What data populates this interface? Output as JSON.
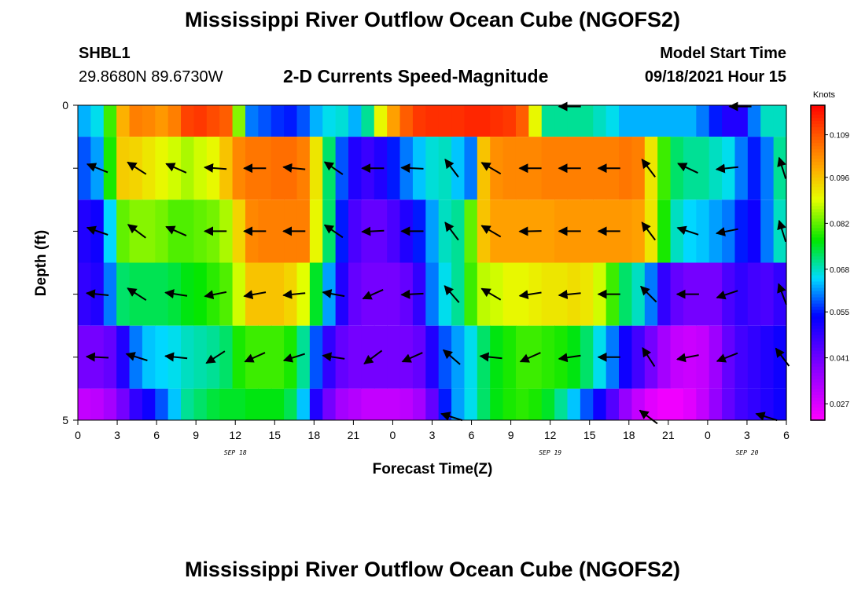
{
  "title": "Mississippi River Outflow Ocean Cube (NGOFS2)",
  "footer_title": "Mississippi River Outflow Ocean Cube (NGOFS2)",
  "station": {
    "id": "SHBL1",
    "coords": "29.8680N  89.6730W"
  },
  "model_start": {
    "label": "Model Start Time",
    "value": "09/18/2021 Hour 15"
  },
  "chart_data": {
    "type": "heatmap",
    "subtitle": "2-D Currents Speed-Magnitude",
    "xlabel": "Forecast Time(Z)",
    "ylabel": "Depth (ft)",
    "y_tick_labels": [
      "0",
      "",
      "",
      "",
      "",
      "5"
    ],
    "x_tick_labels": [
      "0",
      "3",
      "6",
      "9",
      "12",
      "15",
      "18",
      "21",
      "0",
      "3",
      "6",
      "9",
      "12",
      "15",
      "18",
      "21",
      "0",
      "3",
      "6"
    ],
    "date_labels": [
      {
        "text": "SEP 18",
        "hour": 12
      },
      {
        "text": "SEP 19",
        "hour": 36
      },
      {
        "text": "SEP 20",
        "hour": 51
      }
    ],
    "x_range_hours": [
      0,
      54
    ],
    "depth_range": [
      0,
      5
    ],
    "colorbar": {
      "unit": "Knots",
      "min": 0.022,
      "max": 0.118,
      "ticks": [
        "0.109",
        "0.096",
        "0.082",
        "0.068",
        "0.055",
        "0.041",
        "0.027"
      ],
      "tick_values": [
        0.109,
        0.096,
        0.082,
        0.068,
        0.055,
        0.041,
        0.027
      ]
    },
    "layers": [
      {
        "name": "layer1",
        "depth_top": 0.0,
        "depth_bottom": 0.5,
        "speed": [
          0.063,
          0.066,
          0.08,
          0.098,
          0.104,
          0.103,
          0.101,
          0.104,
          0.111,
          0.112,
          0.11,
          0.108,
          0.084,
          0.06,
          0.058,
          0.056,
          0.055,
          0.058,
          0.063,
          0.066,
          0.067,
          0.063,
          0.07,
          0.09,
          0.1,
          0.108,
          0.112,
          0.113,
          0.113,
          0.113,
          0.114,
          0.114,
          0.113,
          0.112,
          0.108,
          0.09,
          0.07,
          0.07,
          0.07,
          0.07,
          0.068,
          0.066,
          0.063,
          0.063,
          0.063,
          0.063,
          0.063,
          0.063,
          0.06,
          0.055,
          0.05,
          0.05,
          0.06,
          0.068,
          0.068
        ]
      },
      {
        "name": "layer2",
        "depth_top": 0.5,
        "depth_bottom": 1.5,
        "speed": [
          0.058,
          0.062,
          0.078,
          0.095,
          0.094,
          0.092,
          0.09,
          0.088,
          0.086,
          0.088,
          0.09,
          0.096,
          0.103,
          0.105,
          0.105,
          0.106,
          0.106,
          0.104,
          0.092,
          0.072,
          0.058,
          0.05,
          0.047,
          0.05,
          0.055,
          0.06,
          0.064,
          0.067,
          0.068,
          0.064,
          0.06,
          0.096,
          0.102,
          0.103,
          0.103,
          0.103,
          0.104,
          0.104,
          0.104,
          0.104,
          0.104,
          0.104,
          0.105,
          0.104,
          0.092,
          0.08,
          0.072,
          0.07,
          0.07,
          0.068,
          0.066,
          0.06,
          0.055,
          0.06,
          0.07
        ]
      },
      {
        "name": "layer3",
        "depth_top": 1.5,
        "depth_bottom": 2.5,
        "speed": [
          0.05,
          0.052,
          0.065,
          0.082,
          0.084,
          0.084,
          0.083,
          0.081,
          0.081,
          0.082,
          0.083,
          0.086,
          0.094,
          0.103,
          0.104,
          0.104,
          0.104,
          0.104,
          0.09,
          0.072,
          0.055,
          0.045,
          0.042,
          0.042,
          0.045,
          0.05,
          0.055,
          0.062,
          0.068,
          0.07,
          0.082,
          0.096,
          0.1,
          0.1,
          0.1,
          0.1,
          0.1,
          0.101,
          0.101,
          0.101,
          0.101,
          0.101,
          0.101,
          0.1,
          0.092,
          0.078,
          0.068,
          0.065,
          0.064,
          0.062,
          0.06,
          0.055,
          0.052,
          0.06,
          0.068
        ]
      },
      {
        "name": "layer4",
        "depth_top": 2.5,
        "depth_bottom": 3.5,
        "speed": [
          0.048,
          0.05,
          0.06,
          0.072,
          0.073,
          0.073,
          0.073,
          0.074,
          0.076,
          0.077,
          0.079,
          0.081,
          0.088,
          0.096,
          0.096,
          0.096,
          0.094,
          0.089,
          0.075,
          0.062,
          0.05,
          0.042,
          0.04,
          0.04,
          0.04,
          0.042,
          0.048,
          0.06,
          0.066,
          0.07,
          0.08,
          0.087,
          0.088,
          0.09,
          0.09,
          0.091,
          0.092,
          0.092,
          0.093,
          0.092,
          0.088,
          0.08,
          0.072,
          0.068,
          0.06,
          0.048,
          0.042,
          0.04,
          0.04,
          0.04,
          0.045,
          0.048,
          0.046,
          0.045,
          0.048
        ]
      },
      {
        "name": "layer5",
        "depth_top": 3.5,
        "depth_bottom": 4.5,
        "speed": [
          0.04,
          0.04,
          0.042,
          0.05,
          0.06,
          0.064,
          0.065,
          0.066,
          0.068,
          0.069,
          0.07,
          0.072,
          0.078,
          0.08,
          0.08,
          0.08,
          0.078,
          0.07,
          0.058,
          0.048,
          0.042,
          0.04,
          0.04,
          0.04,
          0.04,
          0.04,
          0.042,
          0.05,
          0.058,
          0.062,
          0.066,
          0.072,
          0.076,
          0.078,
          0.08,
          0.08,
          0.079,
          0.078,
          0.076,
          0.072,
          0.066,
          0.06,
          0.052,
          0.046,
          0.04,
          0.034,
          0.03,
          0.029,
          0.03,
          0.035,
          0.042,
          0.046,
          0.048,
          0.05,
          0.052
        ]
      },
      {
        "name": "layer6",
        "depth_top": 4.5,
        "depth_bottom": 5.0,
        "speed": [
          0.03,
          0.031,
          0.034,
          0.04,
          0.048,
          0.052,
          0.058,
          0.064,
          0.07,
          0.072,
          0.074,
          0.075,
          0.075,
          0.076,
          0.076,
          0.076,
          0.073,
          0.064,
          0.05,
          0.04,
          0.034,
          0.032,
          0.03,
          0.03,
          0.03,
          0.031,
          0.034,
          0.042,
          0.055,
          0.062,
          0.066,
          0.072,
          0.076,
          0.078,
          0.079,
          0.078,
          0.075,
          0.07,
          0.064,
          0.058,
          0.052,
          0.044,
          0.036,
          0.03,
          0.026,
          0.024,
          0.024,
          0.026,
          0.03,
          0.036,
          0.042,
          0.046,
          0.048,
          0.05,
          0.052
        ]
      }
    ],
    "vectors": [
      {
        "depth": 1.0,
        "items": [
          {
            "h": 1.5,
            "u": -1.0,
            "v": 0.4
          },
          {
            "h": 4.5,
            "u": -0.85,
            "v": 0.55
          },
          {
            "h": 7.5,
            "u": -0.9,
            "v": 0.4
          },
          {
            "h": 10.5,
            "u": -1.0,
            "v": 0.08
          },
          {
            "h": 13.5,
            "u": -1.0,
            "v": 0.0
          },
          {
            "h": 16.5,
            "u": -1.0,
            "v": 0.1
          },
          {
            "h": 19.5,
            "u": -0.8,
            "v": 0.55
          },
          {
            "h": 22.5,
            "u": -1.0,
            "v": 0.0
          },
          {
            "h": 25.5,
            "u": -1.0,
            "v": 0.05
          },
          {
            "h": 28.5,
            "u": -0.6,
            "v": 0.8
          },
          {
            "h": 31.5,
            "u": -0.85,
            "v": 0.5
          },
          {
            "h": 34.5,
            "u": -1.0,
            "v": 0.0
          },
          {
            "h": 37.5,
            "u": -1.0,
            "v": 0.0
          },
          {
            "h": 40.5,
            "u": -1.0,
            "v": 0.0
          },
          {
            "h": 43.5,
            "u": -0.6,
            "v": 0.8
          },
          {
            "h": 46.5,
            "u": -0.85,
            "v": 0.4
          },
          {
            "h": 49.5,
            "u": -1.0,
            "v": -0.1
          },
          {
            "h": 53.7,
            "u": -0.3,
            "v": 0.95
          }
        ]
      },
      {
        "depth": 2.0,
        "items": [
          {
            "h": 1.5,
            "u": -1.0,
            "v": 0.35
          },
          {
            "h": 4.5,
            "u": -0.8,
            "v": 0.6
          },
          {
            "h": 7.5,
            "u": -0.9,
            "v": 0.4
          },
          {
            "h": 10.5,
            "u": -1.0,
            "v": 0.0
          },
          {
            "h": 13.5,
            "u": -1.0,
            "v": 0.0
          },
          {
            "h": 16.5,
            "u": -1.0,
            "v": 0.0
          },
          {
            "h": 19.5,
            "u": -0.8,
            "v": 0.55
          },
          {
            "h": 22.5,
            "u": -1.0,
            "v": -0.05
          },
          {
            "h": 25.5,
            "u": -1.0,
            "v": 0.0
          },
          {
            "h": 28.5,
            "u": -0.6,
            "v": 0.8
          },
          {
            "h": 31.5,
            "u": -0.85,
            "v": 0.5
          },
          {
            "h": 34.5,
            "u": -1.0,
            "v": -0.02
          },
          {
            "h": 37.5,
            "u": -1.0,
            "v": 0.0
          },
          {
            "h": 40.5,
            "u": -1.0,
            "v": 0.0
          },
          {
            "h": 43.5,
            "u": -0.6,
            "v": 0.8
          },
          {
            "h": 46.5,
            "u": -0.9,
            "v": 0.3
          },
          {
            "h": 49.5,
            "u": -1.0,
            "v": -0.2
          },
          {
            "h": 53.7,
            "u": -0.3,
            "v": 0.95
          }
        ]
      },
      {
        "depth": 3.0,
        "items": [
          {
            "h": 1.5,
            "u": -1.0,
            "v": 0.1
          },
          {
            "h": 4.5,
            "u": -0.85,
            "v": 0.55
          },
          {
            "h": 7.5,
            "u": -1.0,
            "v": 0.15
          },
          {
            "h": 10.5,
            "u": -1.0,
            "v": -0.2
          },
          {
            "h": 13.5,
            "u": -1.0,
            "v": -0.18
          },
          {
            "h": 16.5,
            "u": -1.0,
            "v": -0.1
          },
          {
            "h": 19.5,
            "u": -1.0,
            "v": 0.18
          },
          {
            "h": 22.5,
            "u": -0.9,
            "v": -0.4
          },
          {
            "h": 25.5,
            "u": -1.0,
            "v": -0.05
          },
          {
            "h": 28.5,
            "u": -0.65,
            "v": 0.75
          },
          {
            "h": 31.5,
            "u": -0.85,
            "v": 0.5
          },
          {
            "h": 34.5,
            "u": -1.0,
            "v": -0.15
          },
          {
            "h": 37.5,
            "u": -1.0,
            "v": -0.1
          },
          {
            "h": 40.5,
            "u": -1.0,
            "v": 0.0
          },
          {
            "h": 43.5,
            "u": -0.7,
            "v": 0.7
          },
          {
            "h": 46.5,
            "u": -1.0,
            "v": 0.0
          },
          {
            "h": 49.5,
            "u": -0.9,
            "v": -0.3
          },
          {
            "h": 53.7,
            "u": -0.35,
            "v": 0.93
          }
        ]
      },
      {
        "depth": 4.0,
        "items": [
          {
            "h": 1.5,
            "u": -1.0,
            "v": 0.05
          },
          {
            "h": 4.5,
            "u": -0.95,
            "v": 0.3
          },
          {
            "h": 7.5,
            "u": -1.0,
            "v": 0.1
          },
          {
            "h": 10.5,
            "u": -0.85,
            "v": -0.55
          },
          {
            "h": 13.5,
            "u": -0.9,
            "v": -0.4
          },
          {
            "h": 16.5,
            "u": -0.95,
            "v": -0.3
          },
          {
            "h": 19.5,
            "u": -1.0,
            "v": 0.15
          },
          {
            "h": 22.5,
            "u": -0.8,
            "v": -0.6
          },
          {
            "h": 25.5,
            "u": -0.9,
            "v": -0.4
          },
          {
            "h": 28.5,
            "u": -0.75,
            "v": 0.65
          },
          {
            "h": 31.5,
            "u": -1.0,
            "v": 0.1
          },
          {
            "h": 34.5,
            "u": -0.9,
            "v": -0.4
          },
          {
            "h": 37.5,
            "u": -1.0,
            "v": -0.15
          },
          {
            "h": 40.5,
            "u": -1.0,
            "v": 0.0
          },
          {
            "h": 43.5,
            "u": -0.55,
            "v": 0.85
          },
          {
            "h": 46.5,
            "u": -1.0,
            "v": -0.2
          },
          {
            "h": 49.5,
            "u": -0.9,
            "v": -0.35
          },
          {
            "h": 53.7,
            "u": -0.6,
            "v": 0.8
          }
        ]
      },
      {
        "depth": 4.95,
        "items": [
          {
            "h": 28.5,
            "u": -0.95,
            "v": 0.3
          },
          {
            "h": 43.5,
            "u": -0.8,
            "v": 0.6
          },
          {
            "h": 52.5,
            "u": -0.95,
            "v": 0.3
          }
        ]
      },
      {
        "depth": 0.02,
        "items": [
          {
            "h": 37.5,
            "u": -1.0,
            "v": 0.0
          },
          {
            "h": 50.5,
            "u": -1.0,
            "v": 0.0
          }
        ]
      }
    ]
  }
}
